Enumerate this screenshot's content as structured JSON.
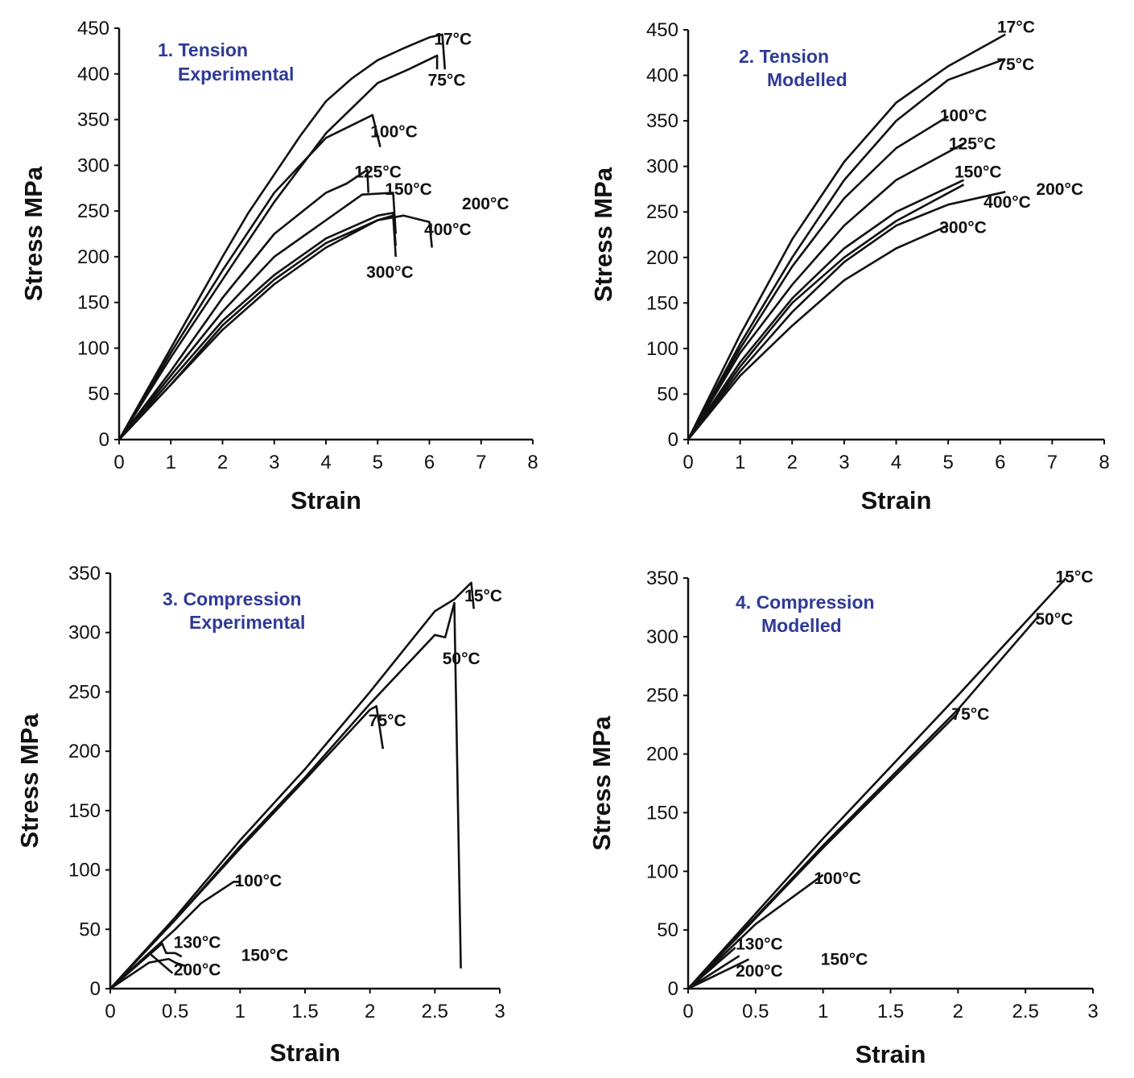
{
  "colors": {
    "title": "#2f3a96",
    "line": "#111111"
  },
  "chart_data": [
    {
      "type": "line",
      "title_lines": [
        "1. Tension",
        "Experimental"
      ],
      "xlabel": "Strain",
      "ylabel": "Stress MPa",
      "xlim": [
        0,
        8
      ],
      "ylim": [
        0,
        450
      ],
      "xticks": [
        "0",
        "1",
        "2",
        "3",
        "4",
        "5",
        "6",
        "7",
        "8"
      ],
      "yticks": [
        "0",
        "50",
        "100",
        "150",
        "200",
        "250",
        "300",
        "350",
        "400",
        "450"
      ],
      "grid": false,
      "series": [
        {
          "name": "17°C",
          "points": [
            [
              0,
              0
            ],
            [
              0.5,
              50
            ],
            [
              1,
              100
            ],
            [
              1.5,
              150
            ],
            [
              2,
              200
            ],
            [
              2.5,
              248
            ],
            [
              3,
              290
            ],
            [
              3.5,
              332
            ],
            [
              4,
              370
            ],
            [
              4.5,
              395
            ],
            [
              5,
              415
            ],
            [
              5.5,
              428
            ],
            [
              6,
              440
            ],
            [
              6.25,
              443
            ],
            [
              6.3,
              405
            ]
          ]
        },
        {
          "name": "75°C",
          "points": [
            [
              0,
              0
            ],
            [
              1,
              90
            ],
            [
              2,
              175
            ],
            [
              3,
              260
            ],
            [
              4,
              335
            ],
            [
              5,
              390
            ],
            [
              5.6,
              405
            ],
            [
              6.15,
              420
            ],
            [
              6.15,
              405
            ]
          ]
        },
        {
          "name": "100°C",
          "points": [
            [
              0,
              0
            ],
            [
              1,
              95
            ],
            [
              2,
              185
            ],
            [
              3,
              270
            ],
            [
              3.5,
              300
            ],
            [
              4,
              330
            ],
            [
              4.9,
              355
            ],
            [
              5.05,
              320
            ]
          ]
        },
        {
          "name": "125°C",
          "points": [
            [
              0,
              0
            ],
            [
              1,
              75
            ],
            [
              2,
              155
            ],
            [
              3,
              225
            ],
            [
              4,
              270
            ],
            [
              4.4,
              280
            ],
            [
              4.8,
              295
            ],
            [
              4.82,
              270
            ]
          ]
        },
        {
          "name": "150°C",
          "points": [
            [
              0,
              0
            ],
            [
              1,
              70
            ],
            [
              2,
              140
            ],
            [
              3,
              200
            ],
            [
              4,
              240
            ],
            [
              4.7,
              268
            ],
            [
              5.3,
              270
            ],
            [
              5.35,
              225
            ]
          ]
        },
        {
          "name": "200°C",
          "points": [
            [
              0,
              0
            ],
            [
              1,
              65
            ],
            [
              2,
              130
            ],
            [
              3,
              180
            ],
            [
              4,
              220
            ],
            [
              5,
              245
            ],
            [
              5.3,
              248
            ],
            [
              5.35,
              212
            ]
          ]
        },
        {
          "name": "300°C",
          "points": [
            [
              0,
              0
            ],
            [
              1,
              60
            ],
            [
              2,
              120
            ],
            [
              3,
              170
            ],
            [
              4,
              210
            ],
            [
              5,
              240
            ],
            [
              5.3,
              245
            ],
            [
              5.35,
              200
            ]
          ]
        },
        {
          "name": "400°C",
          "points": [
            [
              0,
              0
            ],
            [
              1,
              60
            ],
            [
              2,
              125
            ],
            [
              3,
              175
            ],
            [
              4,
              215
            ],
            [
              5,
              240
            ],
            [
              5.5,
              245
            ],
            [
              6,
              238
            ],
            [
              6.05,
              210
            ]
          ]
        }
      ],
      "annotations": [
        {
          "text": "17°C",
          "x": 6.37,
          "y": 438
        },
        {
          "text": "75°C",
          "x": 6.25,
          "y": 393
        },
        {
          "text": "100°C",
          "x": 5.14,
          "y": 337
        },
        {
          "text": "125°C",
          "x": 4.83,
          "y": 293
        },
        {
          "text": "150°C",
          "x": 5.42,
          "y": 274
        },
        {
          "text": "200°C",
          "x": 6.91,
          "y": 258
        },
        {
          "text": "400°C",
          "x": 6.18,
          "y": 230
        },
        {
          "text": "300°C",
          "x": 5.06,
          "y": 183
        }
      ]
    },
    {
      "type": "line",
      "title_lines": [
        "2. Tension",
        "Modelled"
      ],
      "xlabel": "Strain",
      "ylabel": "Stress MPa",
      "xlim": [
        0,
        8
      ],
      "ylim": [
        0,
        450
      ],
      "xticks": [
        "0",
        "1",
        "2",
        "3",
        "4",
        "5",
        "6",
        "7",
        "8"
      ],
      "yticks": [
        "0",
        "50",
        "100",
        "150",
        "200",
        "250",
        "300",
        "350",
        "400",
        "450"
      ],
      "grid": false,
      "series": [
        {
          "name": "17°C",
          "points": [
            [
              0,
              0
            ],
            [
              1,
              115
            ],
            [
              2,
              220
            ],
            [
              3,
              305
            ],
            [
              4,
              370
            ],
            [
              5,
              410
            ],
            [
              6.1,
              445
            ]
          ]
        },
        {
          "name": "75°C",
          "points": [
            [
              0,
              0
            ],
            [
              1,
              105
            ],
            [
              2,
              200
            ],
            [
              3,
              285
            ],
            [
              4,
              350
            ],
            [
              5,
              395
            ],
            [
              6.1,
              418
            ]
          ]
        },
        {
          "name": "100°C",
          "points": [
            [
              0,
              0
            ],
            [
              1,
              100
            ],
            [
              2,
              190
            ],
            [
              3,
              265
            ],
            [
              4,
              320
            ],
            [
              5,
              355
            ]
          ]
        },
        {
          "name": "125°C",
          "points": [
            [
              0,
              0
            ],
            [
              1,
              95
            ],
            [
              2,
              170
            ],
            [
              3,
              235
            ],
            [
              4,
              285
            ],
            [
              5.3,
              325
            ]
          ]
        },
        {
          "name": "150°C",
          "points": [
            [
              0,
              0
            ],
            [
              1,
              85
            ],
            [
              2,
              155
            ],
            [
              3,
              210
            ],
            [
              4,
              250
            ],
            [
              5.3,
              285
            ]
          ]
        },
        {
          "name": "200°C",
          "points": [
            [
              0,
              0
            ],
            [
              1,
              80
            ],
            [
              2,
              150
            ],
            [
              3,
              200
            ],
            [
              4,
              240
            ],
            [
              5.3,
              280
            ]
          ]
        },
        {
          "name": "400°C",
          "points": [
            [
              0,
              0
            ],
            [
              1,
              75
            ],
            [
              2,
              140
            ],
            [
              3,
              195
            ],
            [
              4,
              235
            ],
            [
              5,
              258
            ],
            [
              6.1,
              272
            ]
          ]
        },
        {
          "name": "300°C",
          "points": [
            [
              0,
              0
            ],
            [
              1,
              70
            ],
            [
              2,
              125
            ],
            [
              3,
              175
            ],
            [
              4,
              210
            ],
            [
              5,
              235
            ]
          ]
        }
      ],
      "annotations": [
        {
          "text": "17°C",
          "x": 6.22,
          "y": 453
        },
        {
          "text": "75°C",
          "x": 6.21,
          "y": 412
        },
        {
          "text": "100°C",
          "x": 5.12,
          "y": 356
        },
        {
          "text": "125°C",
          "x": 5.29,
          "y": 325
        },
        {
          "text": "150°C",
          "x": 5.4,
          "y": 294
        },
        {
          "text": "400°C",
          "x": 5.96,
          "y": 261
        },
        {
          "text": "200°C",
          "x": 6.97,
          "y": 275
        },
        {
          "text": "300°C",
          "x": 5.11,
          "y": 233
        }
      ]
    },
    {
      "type": "line",
      "title_lines": [
        "3. Compression",
        "Experimental"
      ],
      "xlabel": "Strain",
      "ylabel": "Stress MPa",
      "xlim": [
        0,
        3
      ],
      "ylim": [
        0,
        350
      ],
      "xticks": [
        "0",
        "0.5",
        "1",
        "1.5",
        "2",
        "2.5",
        "3"
      ],
      "yticks": [
        "0",
        "50",
        "100",
        "150",
        "200",
        "250",
        "300",
        "350"
      ],
      "grid": false,
      "series": [
        {
          "name": "15°C",
          "points": [
            [
              0,
              0
            ],
            [
              0.5,
              60
            ],
            [
              1,
              125
            ],
            [
              1.5,
              185
            ],
            [
              2,
              250
            ],
            [
              2.5,
              318
            ],
            [
              2.65,
              328
            ],
            [
              2.78,
              342
            ],
            [
              2.8,
              320
            ]
          ]
        },
        {
          "name": "50°C",
          "points": [
            [
              0,
              0
            ],
            [
              0.5,
              58
            ],
            [
              1,
              120
            ],
            [
              1.5,
              178
            ],
            [
              2,
              240
            ],
            [
              2.5,
              298
            ],
            [
              2.58,
              296
            ],
            [
              2.65,
              325
            ],
            [
              2.7,
              17
            ]
          ]
        },
        {
          "name": "75°C",
          "points": [
            [
              0,
              0
            ],
            [
              0.5,
              58
            ],
            [
              1,
              118
            ],
            [
              1.5,
              176
            ],
            [
              2,
              235
            ],
            [
              2.05,
              238
            ],
            [
              2.1,
              202
            ]
          ]
        },
        {
          "name": "100°C",
          "points": [
            [
              0,
              0
            ],
            [
              0.5,
              50
            ],
            [
              0.7,
              72
            ],
            [
              0.95,
              90
            ],
            [
              1,
              90
            ]
          ]
        },
        {
          "name": "130°C",
          "points": [
            [
              0,
              0
            ],
            [
              0.4,
              38
            ],
            [
              0.43,
              30
            ],
            [
              0.5,
              30
            ],
            [
              0.55,
              27
            ]
          ]
        },
        {
          "name": "150°C",
          "points": [
            [
              0,
              0
            ],
            [
              0.3,
              30
            ],
            [
              0.48,
              13
            ]
          ]
        },
        {
          "name": "200°C",
          "points": [
            [
              0,
              0
            ],
            [
              0.3,
              22
            ],
            [
              0.45,
              25
            ],
            [
              0.5,
              22
            ],
            [
              0.58,
              19
            ]
          ]
        }
      ],
      "annotations": [
        {
          "text": "15°C",
          "x": 2.84,
          "y": 331
        },
        {
          "text": "50°C",
          "x": 2.67,
          "y": 278
        },
        {
          "text": "75°C",
          "x": 2.1,
          "y": 226
        },
        {
          "text": "100°C",
          "x": 1.07,
          "y": 91
        },
        {
          "text": "130°C",
          "x": 0.6,
          "y": 39
        },
        {
          "text": "150°C",
          "x": 1.12,
          "y": 28
        },
        {
          "text": "200°C",
          "x": 0.6,
          "y": 16
        }
      ]
    },
    {
      "type": "line",
      "title_lines": [
        "4. Compression",
        "Modelled"
      ],
      "xlabel": "Strain",
      "ylabel": "Stress MPa",
      "xlim": [
        0,
        3
      ],
      "ylim": [
        0,
        350
      ],
      "xticks": [
        "0",
        "0.5",
        "1",
        "1.5",
        "2",
        "2.5",
        "3"
      ],
      "yticks": [
        "0",
        "50",
        "100",
        "150",
        "200",
        "250",
        "300",
        "350"
      ],
      "grid": false,
      "series": [
        {
          "name": "15°C",
          "points": [
            [
              0,
              0
            ],
            [
              1,
              128
            ],
            [
              2,
              250
            ],
            [
              2.8,
              350
            ]
          ]
        },
        {
          "name": "50°C",
          "points": [
            [
              0,
              0
            ],
            [
              1,
              122
            ],
            [
              2,
              238
            ],
            [
              2.6,
              318
            ]
          ]
        },
        {
          "name": "75°C",
          "points": [
            [
              0,
              0
            ],
            [
              1,
              120
            ],
            [
              2,
              235
            ]
          ]
        },
        {
          "name": "100°C",
          "points": [
            [
              0,
              0
            ],
            [
              0.5,
              55
            ],
            [
              1,
              97
            ]
          ]
        },
        {
          "name": "130°C",
          "points": [
            [
              0,
              0
            ],
            [
              0.35,
              35
            ]
          ]
        },
        {
          "name": "150°C",
          "points": [
            [
              0,
              0
            ],
            [
              0.38,
              28
            ]
          ]
        },
        {
          "name": "200°C",
          "points": [
            [
              0,
              0
            ],
            [
              0.45,
              25
            ]
          ]
        }
      ],
      "annotations": [
        {
          "text": "15°C",
          "x": 2.83,
          "y": 351
        },
        {
          "text": "50°C",
          "x": 2.68,
          "y": 315
        },
        {
          "text": "75°C",
          "x": 2.06,
          "y": 234
        },
        {
          "text": "100°C",
          "x": 1.04,
          "y": 94
        },
        {
          "text": "130°C",
          "x": 0.46,
          "y": 38
        },
        {
          "text": "150°C",
          "x": 1.09,
          "y": 25
        },
        {
          "text": "200°C",
          "x": 0.46,
          "y": 15
        }
      ]
    }
  ]
}
